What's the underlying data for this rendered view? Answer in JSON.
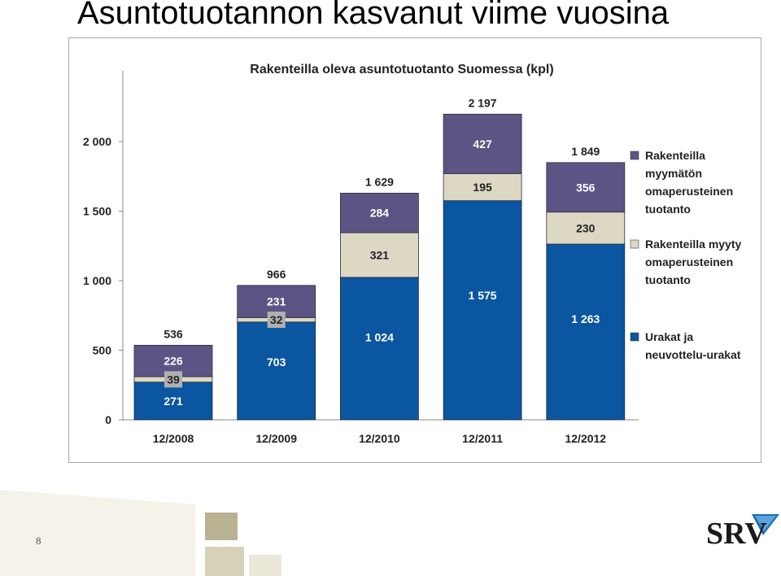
{
  "slide": {
    "title": "Asuntotuotannon kasvanut viime vuosina",
    "page_number": "8"
  },
  "logo": {
    "text": "SRV"
  },
  "colors": {
    "dark_blue": "#0a56a0",
    "beige": "#ddd8c4",
    "purple": "#5b5484",
    "grid": "#e0e0e0"
  },
  "chart_data": {
    "type": "bar",
    "stacked": true,
    "title": "Rakenteilla oleva asuntotuotanto Suomessa (kpl)",
    "categories": [
      "12/2008",
      "12/2009",
      "12/2010",
      "12/2011",
      "12/2012"
    ],
    "series": [
      {
        "name": "Urakat ja neuvottelu-urakat",
        "values": [
          271,
          703,
          1024,
          1575,
          1263
        ]
      },
      {
        "name": "Rakenteilla myyty omaperusteinen tuotanto",
        "values": [
          39,
          32,
          321,
          195,
          230
        ]
      },
      {
        "name": "Rakenteilla myymätön omaperusteinen tuotanto",
        "values": [
          226,
          231,
          284,
          427,
          356
        ]
      }
    ],
    "series_labels": [
      [
        "271",
        "703",
        "1 024",
        "1 575",
        "1 263"
      ],
      [
        "39",
        "32",
        "321",
        "195",
        "230"
      ],
      [
        "226",
        "231",
        "284",
        "427",
        "356"
      ]
    ],
    "totals": [
      536,
      966,
      1629,
      2197,
      1849
    ],
    "total_labels": [
      "536",
      "966",
      "1 629",
      "2 197",
      "1 849"
    ],
    "yticks": [
      0,
      500,
      1000,
      1500,
      2000
    ],
    "ytick_labels": [
      "0",
      "500",
      "1 000",
      "1 500",
      "2 000"
    ],
    "ylim": [
      0,
      2500
    ],
    "legend": {
      "position": "right",
      "lines": [
        [
          "Rakenteilla",
          "myymätön",
          "omaperusteinen",
          "tuotanto"
        ],
        [
          "Rakenteilla myyty",
          "omaperusteinen",
          "tuotanto"
        ],
        [
          "Urakat ja",
          "neuvottelu-urakat"
        ]
      ]
    }
  }
}
